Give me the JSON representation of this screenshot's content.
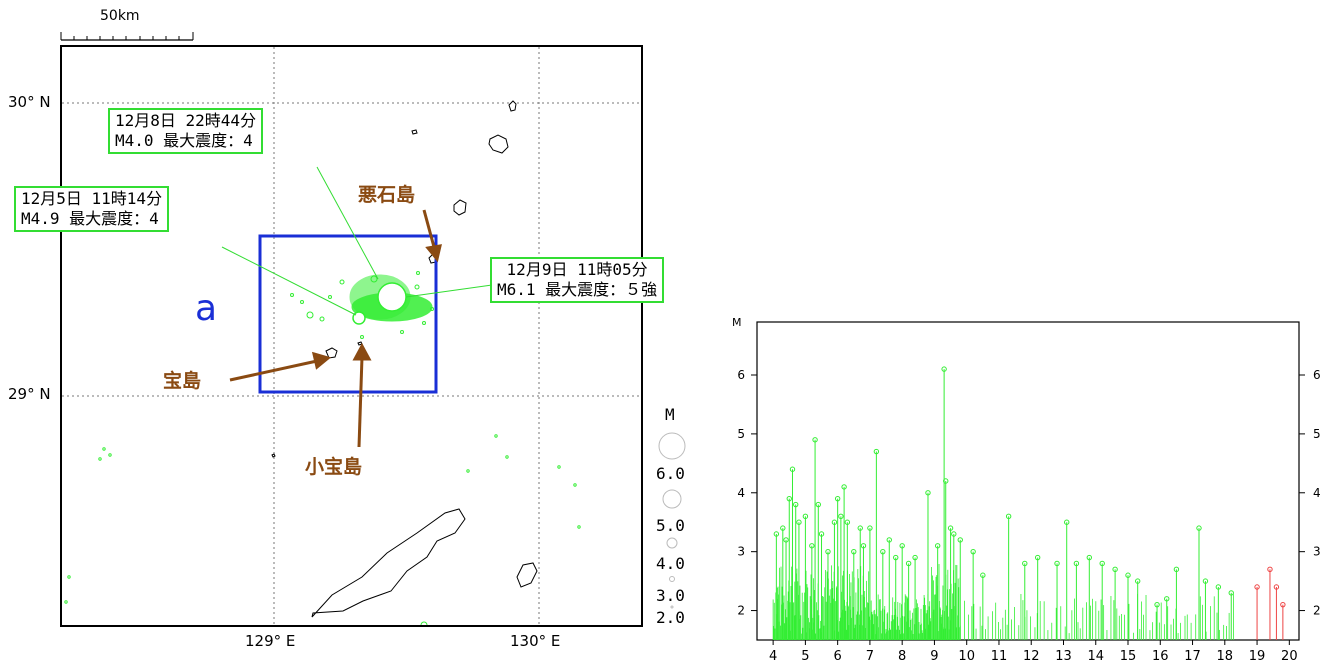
{
  "scale_bar": {
    "label": "50km"
  },
  "map": {
    "lat_labels": [
      "30° N",
      "29° N"
    ],
    "lon_labels": [
      "129° E",
      "130° E"
    ],
    "region_label": "a",
    "region_color": "#1a2fd6"
  },
  "callouts": [
    {
      "line1": "12月8日 22時44分",
      "line2": "M4.0 最大震度：4"
    },
    {
      "line1": "12月5日 11時14分",
      "line2": "M4.9 最大震度：4"
    },
    {
      "line1": "12月9日 11時05分",
      "line2": "M6.1 最大震度：５強"
    }
  ],
  "islands": {
    "akuseki": "悪石島",
    "takara": "宝島",
    "kotakara": "小宝島"
  },
  "colors": {
    "quake": "#33ee33",
    "recent_quake": "#ee4444",
    "annotation_arrow": "#8a4a12",
    "callout_border": "#33dd33"
  },
  "legend": {
    "title": "M",
    "items": [
      "6.0",
      "5.0",
      "4.0",
      "3.0",
      "2.0"
    ]
  },
  "chart_data": {
    "type": "scatter",
    "subtype": "stem (M-T plot)",
    "ylabel": "M",
    "ylim": [
      1.5,
      6.9
    ],
    "y_ticks": [
      2,
      3,
      4,
      5,
      6
    ],
    "x_tick_labels": [
      "4",
      "5",
      "6",
      "7",
      "8",
      "9",
      "10",
      "11",
      "12",
      "13",
      "14",
      "15",
      "16",
      "17",
      "18",
      "19",
      "20"
    ],
    "xlim": [
      3.5,
      20.3
    ],
    "series": [
      {
        "color": "#33ee33",
        "points": [
          [
            4.1,
            3.3
          ],
          [
            4.3,
            3.4
          ],
          [
            4.4,
            3.2
          ],
          [
            4.5,
            3.9
          ],
          [
            4.6,
            4.4
          ],
          [
            4.7,
            3.8
          ],
          [
            4.8,
            3.5
          ],
          [
            5.0,
            3.6
          ],
          [
            5.2,
            3.1
          ],
          [
            5.3,
            4.9
          ],
          [
            5.4,
            3.8
          ],
          [
            5.5,
            3.3
          ],
          [
            5.7,
            3.0
          ],
          [
            5.9,
            3.5
          ],
          [
            6.0,
            3.9
          ],
          [
            6.1,
            3.6
          ],
          [
            6.2,
            4.1
          ],
          [
            6.3,
            3.5
          ],
          [
            6.5,
            3.0
          ],
          [
            6.7,
            3.4
          ],
          [
            6.8,
            3.1
          ],
          [
            7.0,
            3.4
          ],
          [
            7.2,
            4.7
          ],
          [
            7.4,
            3.0
          ],
          [
            7.6,
            3.2
          ],
          [
            7.8,
            2.9
          ],
          [
            8.0,
            3.1
          ],
          [
            8.2,
            2.8
          ],
          [
            8.4,
            2.9
          ],
          [
            8.8,
            4.0
          ],
          [
            9.1,
            3.1
          ],
          [
            9.3,
            6.1
          ],
          [
            9.35,
            4.2
          ],
          [
            9.5,
            3.4
          ],
          [
            9.6,
            3.3
          ],
          [
            9.8,
            3.2
          ],
          [
            10.2,
            3.0
          ],
          [
            10.5,
            2.6
          ],
          [
            11.3,
            3.6
          ],
          [
            11.8,
            2.8
          ],
          [
            12.2,
            2.9
          ],
          [
            12.8,
            2.8
          ],
          [
            13.1,
            3.5
          ],
          [
            13.4,
            2.8
          ],
          [
            13.8,
            2.9
          ],
          [
            14.2,
            2.8
          ],
          [
            14.6,
            2.7
          ],
          [
            15.0,
            2.6
          ],
          [
            15.3,
            2.5
          ],
          [
            15.9,
            2.1
          ],
          [
            16.2,
            2.2
          ],
          [
            16.5,
            2.7
          ],
          [
            17.2,
            3.4
          ],
          [
            17.4,
            2.5
          ],
          [
            17.8,
            2.4
          ],
          [
            18.2,
            2.3
          ]
        ]
      },
      {
        "color": "#ee4444",
        "points": [
          [
            19.0,
            2.4
          ],
          [
            19.4,
            2.7
          ],
          [
            19.6,
            2.4
          ],
          [
            19.8,
            2.1
          ]
        ]
      }
    ]
  }
}
